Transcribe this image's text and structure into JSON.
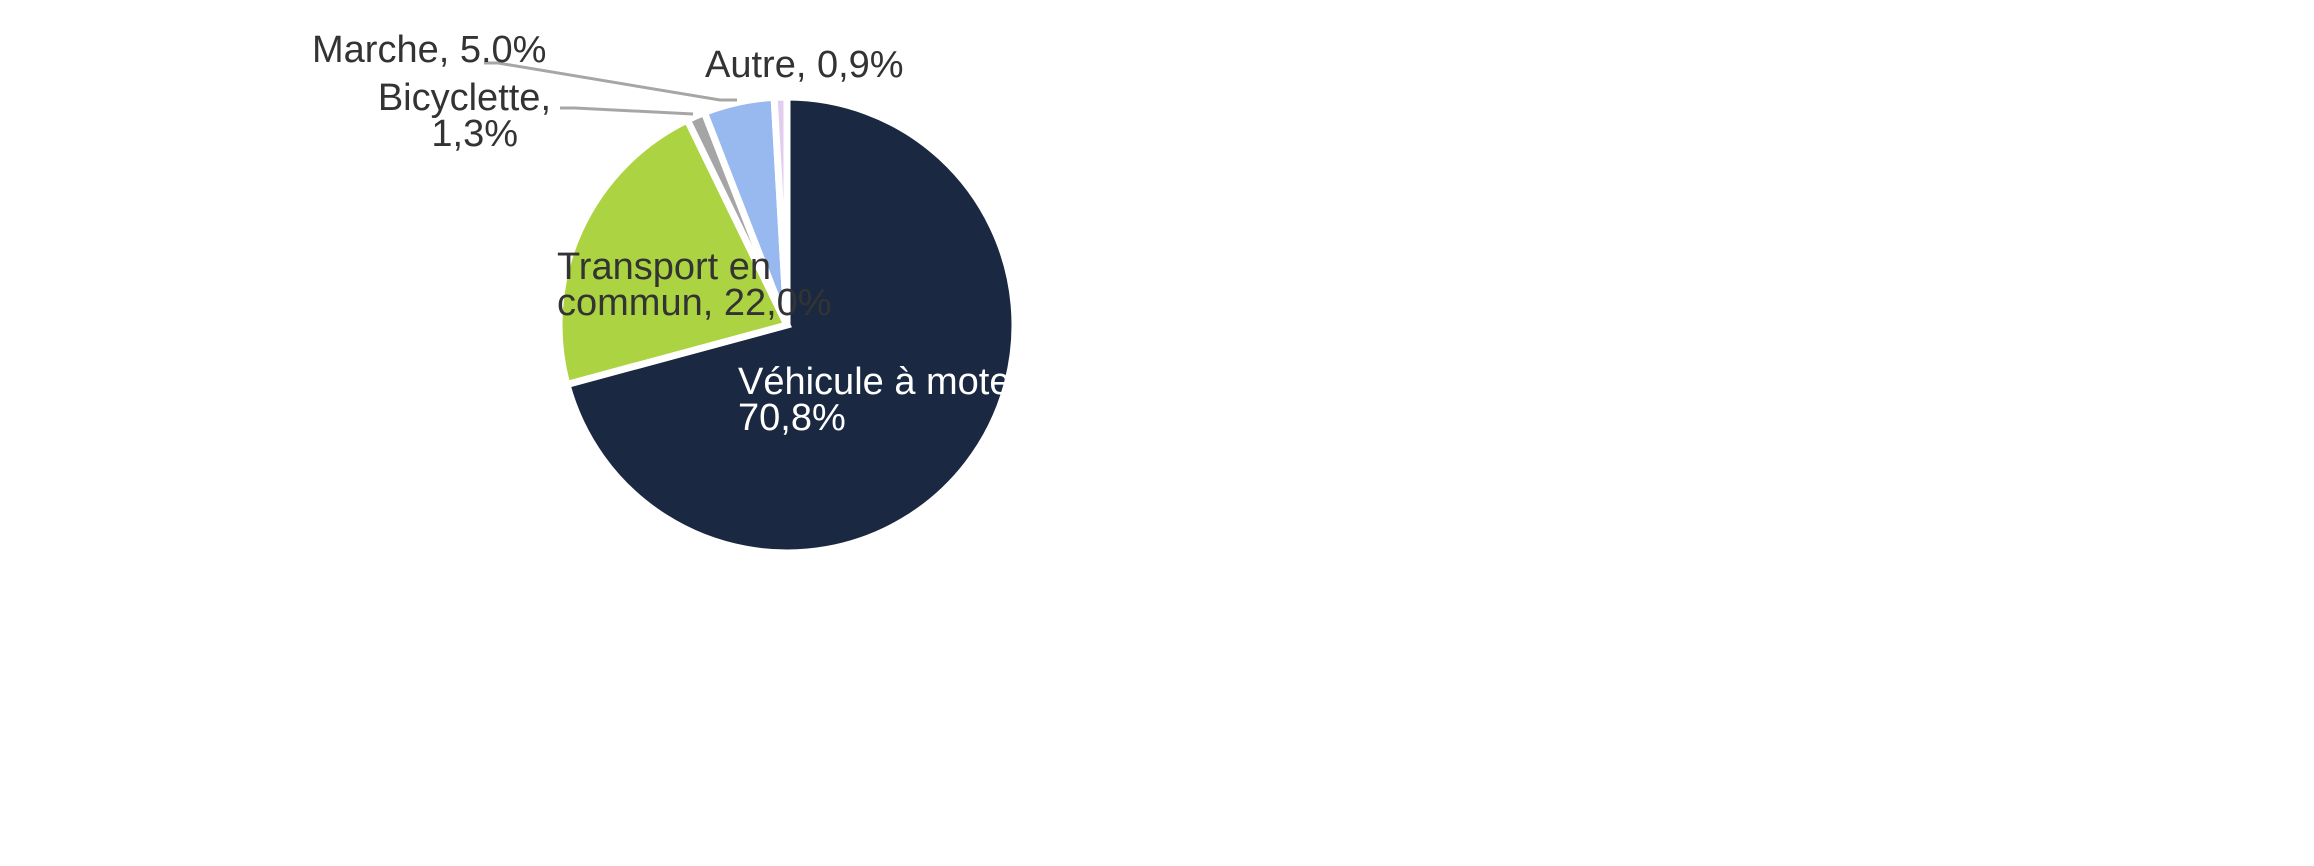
{
  "chart_data": {
    "type": "pie",
    "title": "",
    "slices": [
      {
        "key": "vehicule",
        "label": "Véhicule à moteur,",
        "value_text": "70,8%",
        "value": 70.8,
        "color": "#1b2841"
      },
      {
        "key": "transport",
        "label": "Transport en",
        "label2": "commun, 22,0%",
        "value": 22.0,
        "color": "#acd341"
      },
      {
        "key": "bicyclette",
        "label": "Bicyclette,",
        "value_text": "1,3%",
        "value": 1.3,
        "color": "#a5a5a5"
      },
      {
        "key": "marche",
        "label": "Marche, 5.0%",
        "value": 5.0,
        "color": "#97b9ef"
      },
      {
        "key": "autre",
        "label": "Autre, 0,9%",
        "value": 0.9,
        "color": "#e2cdee"
      }
    ],
    "start": "12 o'clock",
    "direction": "clockwise",
    "legend": "none",
    "data_labels": "on slices / with leader lines"
  }
}
